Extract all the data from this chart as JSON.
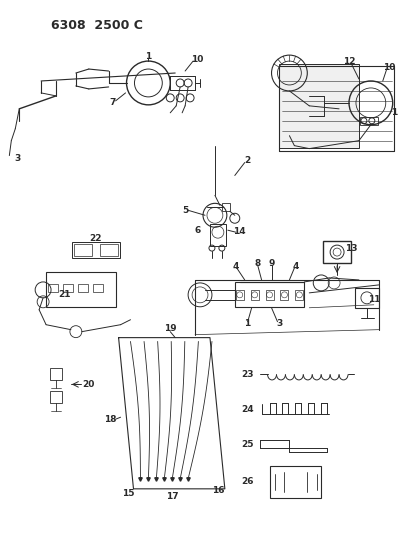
{
  "title": "6308  2500 C",
  "bg": "#ffffff",
  "lc": "#2a2a2a",
  "figsize": [
    4.08,
    5.33
  ],
  "dpi": 100
}
